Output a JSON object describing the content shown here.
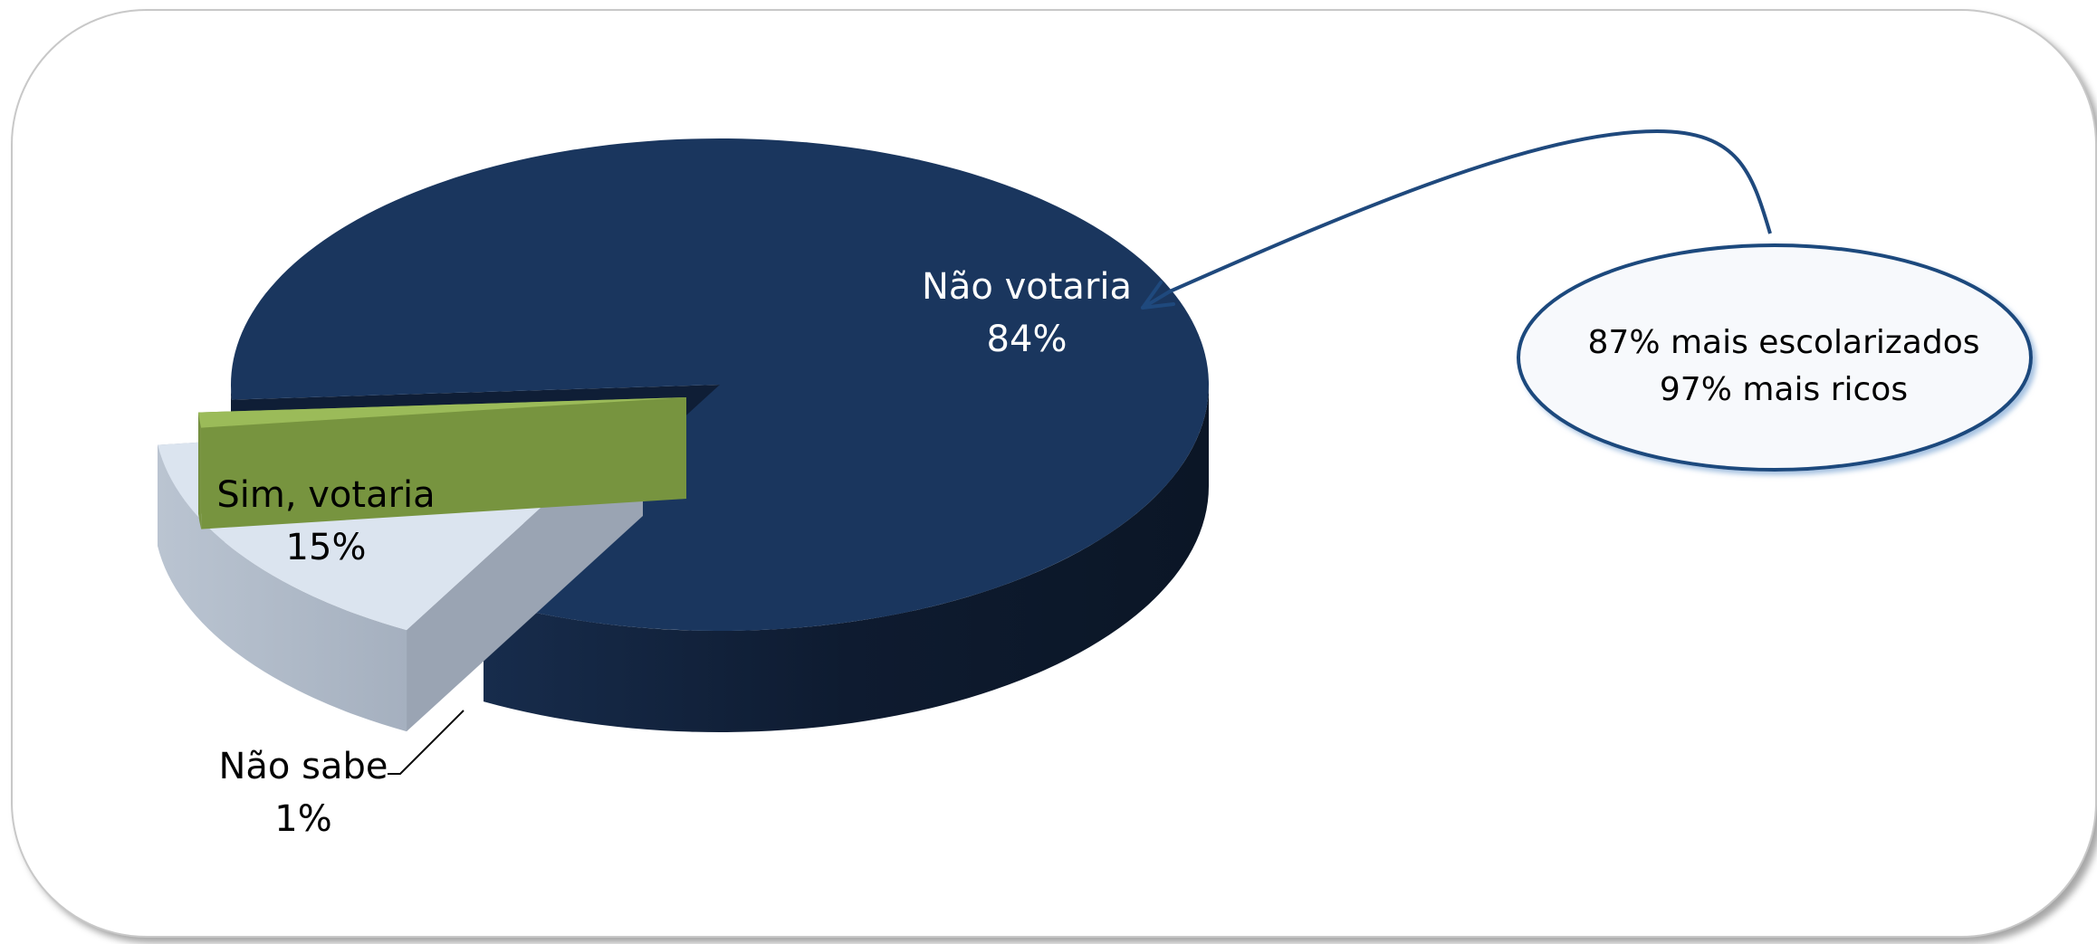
{
  "chart_data": {
    "type": "pie",
    "style": "3d-exploded",
    "slices": [
      {
        "label": "Não votaria",
        "value": 84,
        "value_label": "84%",
        "color": "#1a365e"
      },
      {
        "label": "Sim, votaria",
        "value": 15,
        "value_label": "15%",
        "color": "#dbe4ef"
      },
      {
        "label": "Não sabe",
        "value": 1,
        "value_label": "1%",
        "color": "#9bbb59"
      }
    ],
    "annotation": {
      "lines": [
        "87% mais escolarizados",
        "97% mais ricos"
      ],
      "border_color": "#1f497d"
    },
    "legend": "none"
  }
}
